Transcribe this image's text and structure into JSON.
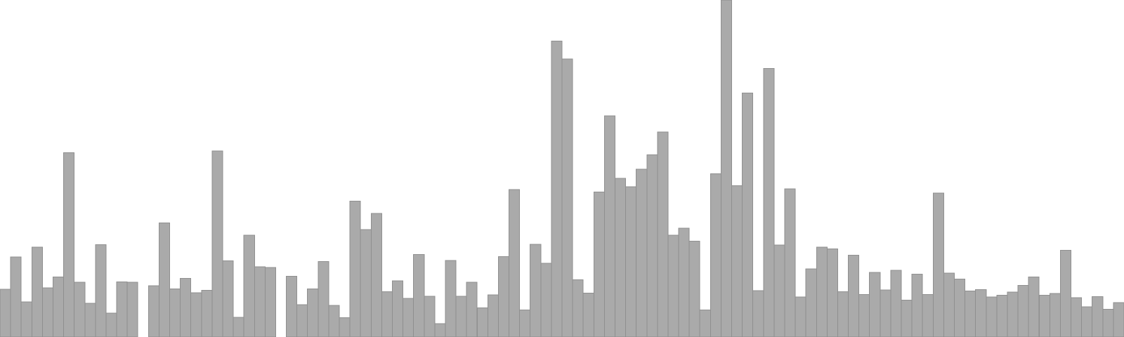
{
  "chart_data": {
    "type": "bar",
    "title": "",
    "xlabel": "",
    "ylabel": "",
    "ylim": [
      0,
      100
    ],
    "grid": false,
    "legend": "none",
    "bar_color": "#aaaaaa",
    "bar_edge_color": "#8f8f8f",
    "background": "#ffffff",
    "values": [
      14.2,
      23.8,
      10.4,
      26.7,
      14.6,
      17.8,
      54.7,
      16.3,
      10.0,
      27.4,
      7.1,
      16.4,
      16.2,
      null,
      15.2,
      33.9,
      14.3,
      17.4,
      13.1,
      13.9,
      55.2,
      22.6,
      5.8,
      30.2,
      20.8,
      20.6,
      null,
      18.0,
      9.6,
      14.3,
      22.4,
      9.4,
      5.7,
      40.3,
      31.9,
      36.7,
      13.4,
      16.7,
      11.5,
      24.5,
      12.1,
      4.0,
      22.7,
      12.1,
      16.2,
      8.6,
      12.5,
      23.9,
      43.7,
      8.0,
      27.5,
      21.9,
      87.8,
      82.5,
      17.0,
      13.0,
      43.0,
      65.6,
      47.1,
      44.6,
      49.8,
      54.1,
      60.8,
      30.2,
      32.3,
      28.4,
      8.0,
      48.4,
      100.0,
      44.9,
      72.4,
      13.8,
      79.7,
      27.3,
      44.0,
      11.9,
      20.2,
      26.7,
      26.1,
      13.4,
      24.3,
      12.6,
      19.2,
      14.0,
      19.8,
      10.9,
      18.6,
      12.6,
      42.7,
      19.0,
      17.2,
      13.6,
      14.1,
      11.9,
      12.4,
      13.3,
      15.3,
      17.8,
      12.4,
      12.9,
      25.7,
      11.7,
      9.0,
      12.0,
      8.2,
      10.2
    ]
  }
}
